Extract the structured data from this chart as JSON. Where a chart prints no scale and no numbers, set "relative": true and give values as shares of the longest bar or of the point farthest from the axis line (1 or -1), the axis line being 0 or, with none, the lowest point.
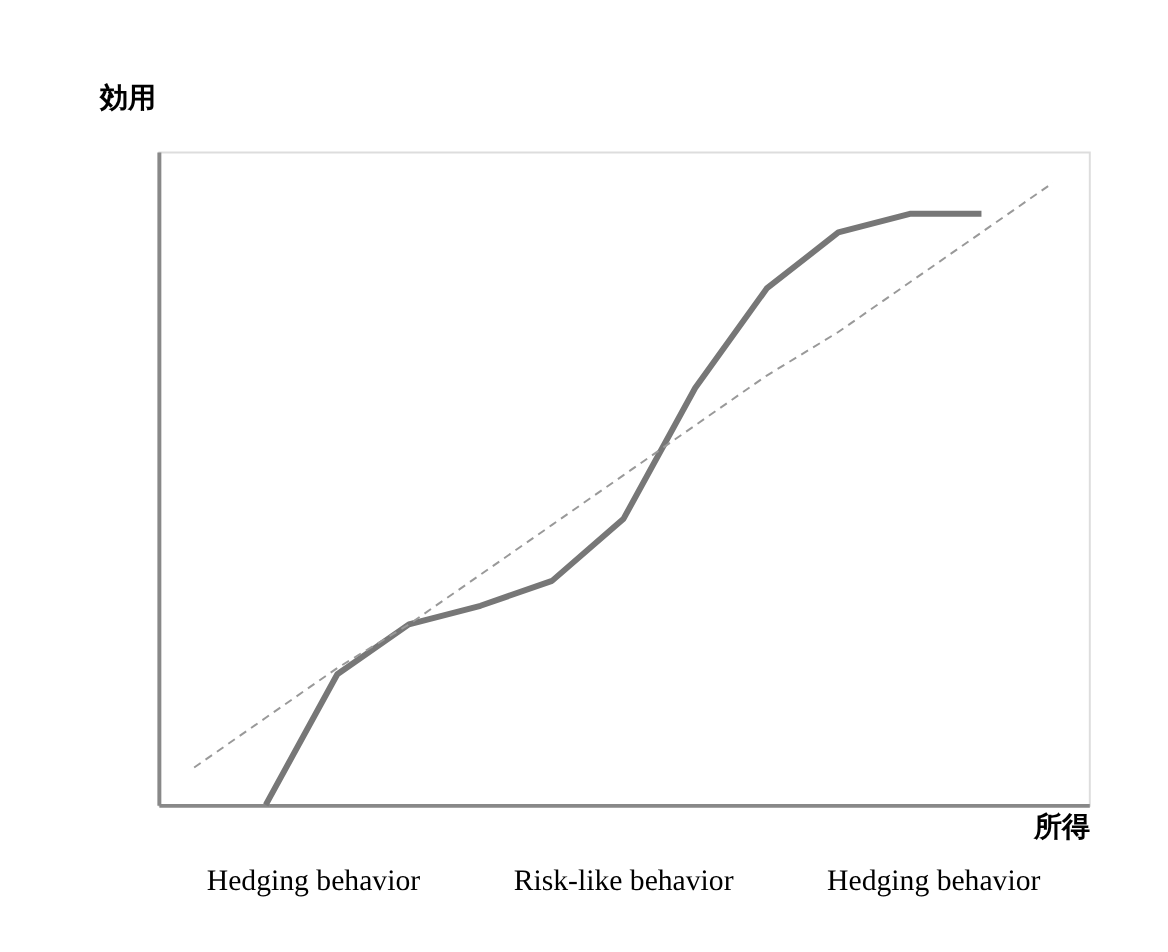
{
  "chart_data": {
    "type": "line",
    "relative": true,
    "xlabel": "所得",
    "ylabel": "効用",
    "categories": [
      null,
      null,
      null,
      null,
      null,
      null,
      null,
      null,
      null,
      null,
      null,
      null,
      null
    ],
    "series": [
      {
        "color": "#777777",
        "line_style": "solid",
        "values": [
          null,
          0,
          0.21,
          0.29,
          0.32,
          0.36,
          0.46,
          0.67,
          0.83,
          0.92,
          0.95,
          0.95,
          null
        ]
      },
      {
        "color": "#999999",
        "line_style": "dashed",
        "values": [
          0.06,
          0.14,
          0.22,
          0.29,
          0.37,
          0.45,
          0.53,
          0.61,
          0.69,
          0.76,
          0.84,
          0.92,
          1.0
        ]
      }
    ],
    "annotations": [
      "Hedging behavior",
      "Risk-like behavior",
      "Hedging behavior"
    ],
    "grid": false,
    "tick_labels": false
  }
}
